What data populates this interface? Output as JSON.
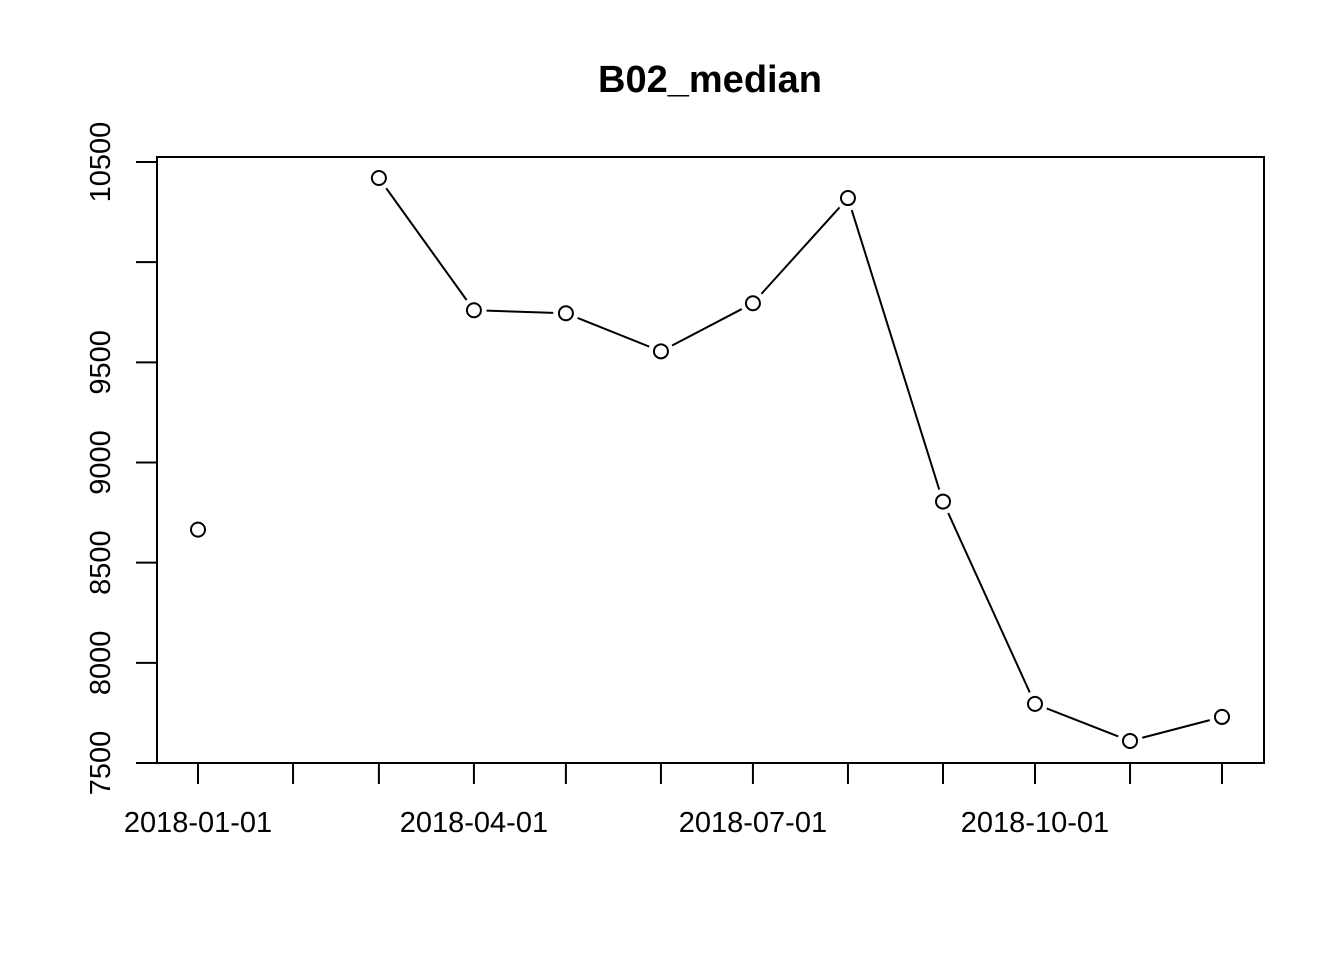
{
  "chart_data": {
    "type": "line",
    "title": "B02_median",
    "xlabel": "",
    "ylabel": "",
    "x": [
      "2018-01-01",
      "2018-02-01",
      "2018-03-01",
      "2018-04-01",
      "2018-05-01",
      "2018-06-01",
      "2018-07-01",
      "2018-08-01",
      "2018-09-01",
      "2018-10-01",
      "2018-11-01",
      "2018-12-01"
    ],
    "series": [
      {
        "values": [
          8665,
          null,
          10420,
          9760,
          9745,
          9555,
          9795,
          10320,
          8805,
          7795,
          7610,
          7730
        ]
      }
    ],
    "ylim": [
      7500,
      10500
    ],
    "x_ticks": [
      "2018-01-01",
      "2018-02-01",
      "2018-03-01",
      "2018-04-01",
      "2018-05-01",
      "2018-06-01",
      "2018-07-01",
      "2018-08-01",
      "2018-09-01",
      "2018-10-01",
      "2018-11-01",
      "2018-12-01"
    ],
    "x_tick_labels": [
      "2018-01-01",
      "",
      "",
      "2018-04-01",
      "",
      "",
      "2018-07-01",
      "",
      "",
      "2018-10-01",
      "",
      ""
    ],
    "y_ticks": [
      7500,
      8000,
      8500,
      9000,
      9500,
      10000,
      10500
    ],
    "y_tick_labels": [
      "7500",
      "8000",
      "8500",
      "9000",
      "9500",
      "",
      "10500"
    ],
    "grid": false,
    "point_style": "open-circle",
    "line_color": "#000000",
    "background": "#ffffff"
  }
}
